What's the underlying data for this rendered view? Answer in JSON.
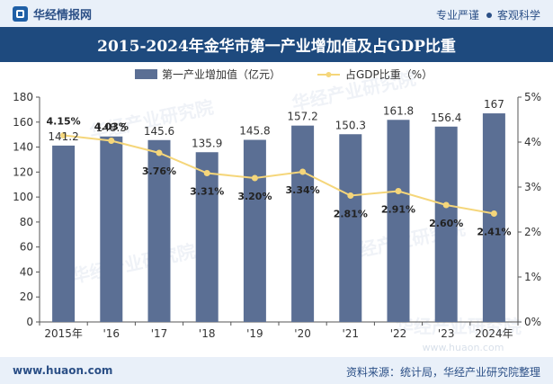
{
  "header": {
    "brand": "华经情报网",
    "tags": [
      "专业严谨",
      "客观科学"
    ]
  },
  "footer": {
    "site": "www.huaon.com",
    "source": "资料来源：统计局，华经产业研究院整理"
  },
  "watermarks": [
    "华经产业研究院",
    "www.huaon.com"
  ],
  "colors": {
    "bar": "#5b6f94",
    "line": "#f5d67a",
    "title_bg": "#1e4a7e",
    "band_bg": "#e9f0f9"
  },
  "chart_data": {
    "type": "bar",
    "title": "2015-2024年金华市第一产业增加值及占GDP比重",
    "categories": [
      "2015年",
      "'16",
      "'17",
      "'18",
      "'19",
      "'20",
      "'21",
      "'22",
      "'23",
      "2024年"
    ],
    "series": [
      {
        "name": "第一产业增加值（亿元）",
        "type": "bar",
        "axis": "left",
        "values": [
          141.2,
          148.5,
          145.6,
          135.9,
          145.8,
          157.2,
          150.3,
          161.8,
          156.4,
          167
        ],
        "labels": [
          "141.2",
          "148.5",
          "145.6",
          "135.9",
          "145.8",
          "157.2",
          "150.3",
          "161.8",
          "156.4",
          "167"
        ]
      },
      {
        "name": "占GDP比重（%）",
        "type": "line",
        "axis": "right",
        "values": [
          4.15,
          4.03,
          3.76,
          3.31,
          3.2,
          3.34,
          2.81,
          2.91,
          2.6,
          2.41
        ],
        "labels": [
          "4.15%",
          "4.03%",
          "3.76%",
          "3.31%",
          "3.20%",
          "3.34%",
          "2.81%",
          "2.91%",
          "2.60%",
          "2.41%"
        ]
      }
    ],
    "y_left": {
      "min": 0,
      "max": 180,
      "ticks": [
        "0",
        "20",
        "40",
        "60",
        "80",
        "100",
        "120",
        "140",
        "160",
        "180"
      ]
    },
    "y_right": {
      "min": 0,
      "max": 5,
      "ticks": [
        "0%",
        "1%",
        "2%",
        "3%",
        "4%",
        "5%"
      ]
    },
    "legend": "top-center",
    "grid": false
  }
}
